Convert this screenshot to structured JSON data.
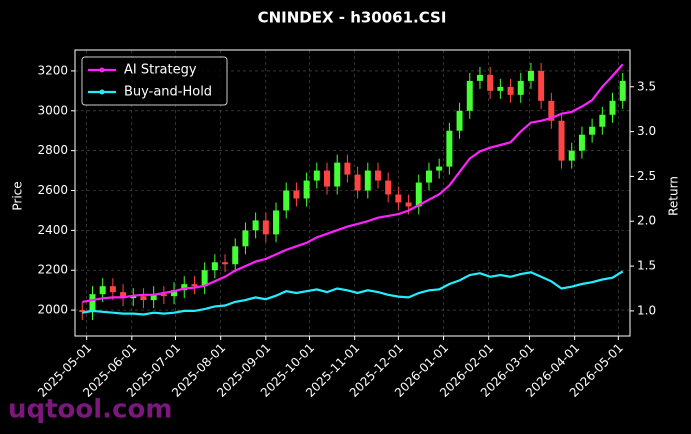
{
  "chart_data": {
    "type": "candlestick",
    "title": "CNINDEX - h30061.CSI",
    "ylabel": "Price",
    "y2label": "Return",
    "watermark": "uqtool.com",
    "x": [
      "2025-04-28",
      "2025-05-05",
      "2025-05-12",
      "2025-05-19",
      "2025-05-26",
      "2025-06-02",
      "2025-06-09",
      "2025-06-16",
      "2025-06-23",
      "2025-06-30",
      "2025-07-07",
      "2025-07-14",
      "2025-07-21",
      "2025-07-28",
      "2025-08-04",
      "2025-08-11",
      "2025-08-18",
      "2025-08-25",
      "2025-09-01",
      "2025-09-08",
      "2025-09-15",
      "2025-09-22",
      "2025-09-29",
      "2025-10-06",
      "2025-10-13",
      "2025-10-20",
      "2025-10-27",
      "2025-11-03",
      "2025-11-10",
      "2025-11-17",
      "2025-11-24",
      "2025-12-01",
      "2025-12-08",
      "2025-12-15",
      "2025-12-22",
      "2025-12-29",
      "2026-01-05",
      "2026-01-12",
      "2026-01-19",
      "2026-01-26",
      "2026-02-02",
      "2026-02-09",
      "2026-02-16",
      "2026-02-23",
      "2026-03-02",
      "2026-03-09",
      "2026-03-16",
      "2026-03-23",
      "2026-03-30",
      "2026-04-06",
      "2026-04-13",
      "2026-04-20",
      "2026-04-27",
      "2026-05-04"
    ],
    "candles": {
      "up_color": "#44ff33",
      "down_color": "#ff4444",
      "open": [
        2000,
        1990,
        2080,
        2120,
        2090,
        2060,
        2070,
        2050,
        2080,
        2070,
        2100,
        2130,
        2120,
        2200,
        2240,
        2230,
        2320,
        2400,
        2450,
        2380,
        2500,
        2600,
        2560,
        2650,
        2700,
        2620,
        2740,
        2680,
        2600,
        2700,
        2650,
        2580,
        2540,
        2520,
        2640,
        2700,
        2720,
        2900,
        3000,
        3150,
        3180,
        3100,
        3120,
        3080,
        3150,
        3200,
        3050,
        2950,
        2750,
        2800,
        2880,
        2920,
        2980,
        3050
      ],
      "high": [
        2040,
        2120,
        2160,
        2160,
        2130,
        2110,
        2110,
        2120,
        2120,
        2140,
        2170,
        2170,
        2240,
        2280,
        2280,
        2360,
        2440,
        2490,
        2490,
        2540,
        2640,
        2640,
        2690,
        2740,
        2740,
        2780,
        2780,
        2720,
        2740,
        2740,
        2690,
        2620,
        2580,
        2680,
        2740,
        2760,
        2940,
        3040,
        3190,
        3220,
        3220,
        3160,
        3160,
        3190,
        3240,
        3240,
        3090,
        2990,
        2840,
        2920,
        2960,
        3020,
        3090,
        3190
      ],
      "low": [
        1950,
        1950,
        2040,
        2050,
        2020,
        2020,
        2010,
        2010,
        2030,
        2030,
        2060,
        2080,
        2080,
        2160,
        2190,
        2190,
        2280,
        2360,
        2340,
        2340,
        2460,
        2520,
        2520,
        2610,
        2580,
        2580,
        2640,
        2560,
        2560,
        2610,
        2540,
        2500,
        2480,
        2480,
        2600,
        2660,
        2680,
        2860,
        2960,
        3110,
        3060,
        3060,
        3040,
        3040,
        3110,
        3010,
        2910,
        2710,
        2710,
        2760,
        2840,
        2880,
        2940,
        3010
      ],
      "close": [
        1990,
        2080,
        2120,
        2090,
        2060,
        2070,
        2050,
        2080,
        2070,
        2100,
        2130,
        2120,
        2200,
        2240,
        2230,
        2320,
        2400,
        2450,
        2380,
        2500,
        2600,
        2560,
        2650,
        2700,
        2620,
        2740,
        2680,
        2600,
        2700,
        2650,
        2580,
        2540,
        2520,
        2640,
        2700,
        2720,
        2900,
        3000,
        3150,
        3180,
        3100,
        3120,
        3080,
        3150,
        3200,
        3050,
        2950,
        2750,
        2800,
        2880,
        2920,
        2980,
        3050,
        3150
      ]
    },
    "series": [
      {
        "name": "AI Strategy",
        "color": "#ff22ff",
        "axis": "y2",
        "values": [
          1.1,
          1.12,
          1.14,
          1.15,
          1.15,
          1.17,
          1.18,
          1.18,
          1.2,
          1.22,
          1.25,
          1.26,
          1.28,
          1.33,
          1.38,
          1.45,
          1.5,
          1.55,
          1.58,
          1.63,
          1.68,
          1.72,
          1.76,
          1.82,
          1.86,
          1.9,
          1.94,
          1.97,
          2.0,
          2.04,
          2.06,
          2.08,
          2.12,
          2.18,
          2.24,
          2.3,
          2.4,
          2.55,
          2.7,
          2.78,
          2.82,
          2.85,
          2.88,
          3.0,
          3.1,
          3.12,
          3.15,
          3.2,
          3.22,
          3.28,
          3.35,
          3.5,
          3.62,
          3.75
        ]
      },
      {
        "name": "Buy-and-Hold",
        "color": "#22eeff",
        "axis": "y2",
        "values": [
          0.98,
          1.0,
          0.99,
          0.98,
          0.97,
          0.97,
          0.96,
          0.98,
          0.97,
          0.98,
          1.0,
          1.0,
          1.02,
          1.05,
          1.06,
          1.1,
          1.12,
          1.15,
          1.13,
          1.17,
          1.22,
          1.2,
          1.22,
          1.24,
          1.21,
          1.25,
          1.23,
          1.2,
          1.23,
          1.21,
          1.18,
          1.16,
          1.15,
          1.2,
          1.23,
          1.24,
          1.3,
          1.34,
          1.4,
          1.42,
          1.38,
          1.4,
          1.38,
          1.41,
          1.43,
          1.38,
          1.33,
          1.25,
          1.27,
          1.3,
          1.32,
          1.35,
          1.37,
          1.44
        ]
      }
    ],
    "xlim": [
      "2025-04-23",
      "2026-05-09"
    ],
    "xticks": [
      "2025-05-01",
      "2025-06-01",
      "2025-07-01",
      "2025-08-01",
      "2025-09-01",
      "2025-10-01",
      "2025-11-01",
      "2025-12-01",
      "2026-01-01",
      "2026-02-01",
      "2026-03-01",
      "2026-04-01",
      "2026-05-01"
    ],
    "ylim": [
      1870,
      3305
    ],
    "yticks": [
      2000,
      2200,
      2400,
      2600,
      2800,
      3000,
      3200
    ],
    "y2lim": [
      0.72,
      3.91
    ],
    "y2ticks": [
      {
        "value": 1,
        "label": "1.0"
      },
      1.5,
      {
        "value": 2,
        "label": "2.0"
      },
      2.5,
      {
        "value": 3,
        "label": "3.0"
      },
      3.5
    ],
    "grid": true,
    "legend": "upper left"
  }
}
